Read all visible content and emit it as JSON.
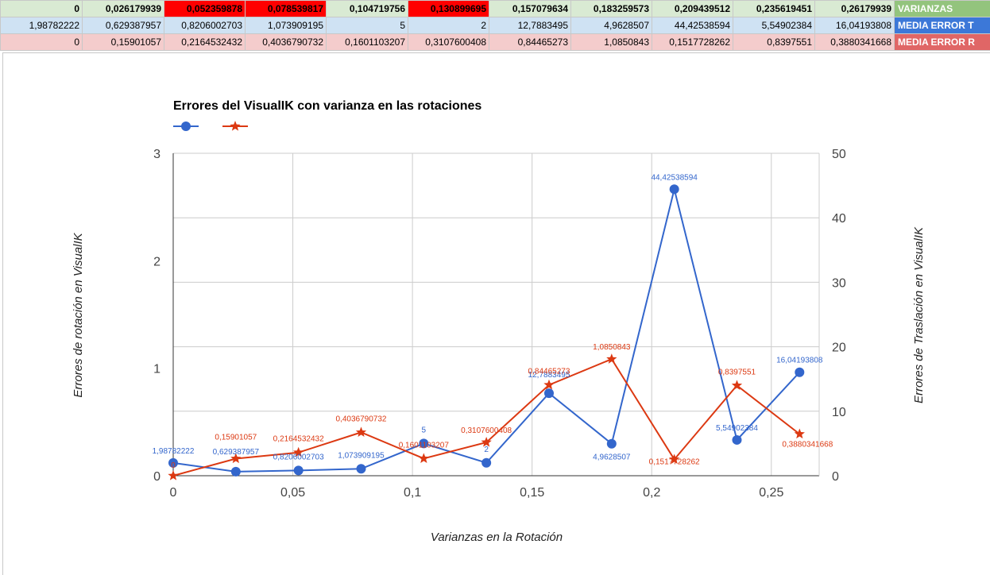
{
  "table": {
    "rows": [
      {
        "label": "VARIANZAS",
        "cells": [
          "0",
          "0,026179939",
          "0,052359878",
          "0,078539817",
          "0,104719756",
          "0,130899695",
          "0,157079634",
          "0,183259573",
          "0,209439512",
          "0,235619451",
          "0,26179939"
        ],
        "highlight_color": "#ff0000"
      },
      {
        "label": "MEDIA ERROR T",
        "cells": [
          "1,98782222",
          "0,629387957",
          "0,8206002703",
          "1,073909195",
          "5",
          "2",
          "12,7883495",
          "4,9628507",
          "44,42538594",
          "5,54902384",
          "16,04193808"
        ]
      },
      {
        "label": "MEDIA ERROR R",
        "cells": [
          "0",
          "0,15901057",
          "0,2164532432",
          "0,4036790732",
          "0,1601103207",
          "0,3107600408",
          "0,84465273",
          "1,0850843",
          "0,1517728262",
          "0,8397551",
          "0,3880341668"
        ]
      }
    ]
  },
  "chart_data": {
    "type": "line",
    "title": "Errores del VisualIK con varianza en las rotaciones",
    "xlabel": "Varianzas en la Rotación",
    "ylabel_left": "Errores de rotación en VisualIK",
    "ylabel_right": "Errores de Traslación en VisualIK",
    "xlim": [
      0,
      0.27
    ],
    "ylim_left": [
      0,
      3
    ],
    "ylim_right": [
      0,
      50
    ],
    "x_ticks": [
      0,
      0.05,
      0.1,
      0.15,
      0.2,
      0.25
    ],
    "x_tick_labels": [
      "0",
      "0,05",
      "0,1",
      "0,15",
      "0,2",
      "0,25"
    ],
    "y_left_ticks": [
      0,
      1,
      2,
      3
    ],
    "y_left_tick_labels": [
      "0",
      "1",
      "2",
      "3"
    ],
    "y_right_ticks": [
      0,
      10,
      20,
      30,
      40,
      50
    ],
    "y_right_tick_labels": [
      "0",
      "10",
      "20",
      "30",
      "40",
      "50"
    ],
    "grid": true,
    "legend_position": "top-left",
    "x": [
      0,
      0.026179939,
      0.052359878,
      0.078539817,
      0.104719756,
      0.130899695,
      0.157079634,
      0.183259573,
      0.209439512,
      0.235619451,
      0.26179939
    ],
    "series": [
      {
        "axis": "right",
        "color": "#3366cc",
        "marker": "circle",
        "values": [
          1.98782222,
          0.629387957,
          0.8206002703,
          1.073909195,
          5,
          2,
          12.7883495,
          4.9628507,
          44.42538594,
          5.54902384,
          16.04193808
        ],
        "labels": [
          "1,98782222",
          "0,629387957",
          "0,8206002703",
          "1,073909195",
          "5",
          "2",
          "12,7883495",
          "4,9628507",
          "44,42538594",
          "5,54902384",
          "16,04193808"
        ]
      },
      {
        "axis": "left",
        "color": "#dc3912",
        "marker": "star",
        "values": [
          0,
          0.15901057,
          0.2164532432,
          0.4036790732,
          0.1601103207,
          0.3107600408,
          0.84465273,
          1.0850843,
          0.1517728262,
          0.8397551,
          0.3880341668
        ],
        "labels": [
          "0",
          "0,15901057",
          "0,2164532432",
          "0,4036790732",
          "0,1601103207",
          "0,3107600408",
          "0,84465273",
          "1,0850843",
          "0,1517728262",
          "0,8397551",
          "0,3880341668"
        ]
      }
    ]
  }
}
